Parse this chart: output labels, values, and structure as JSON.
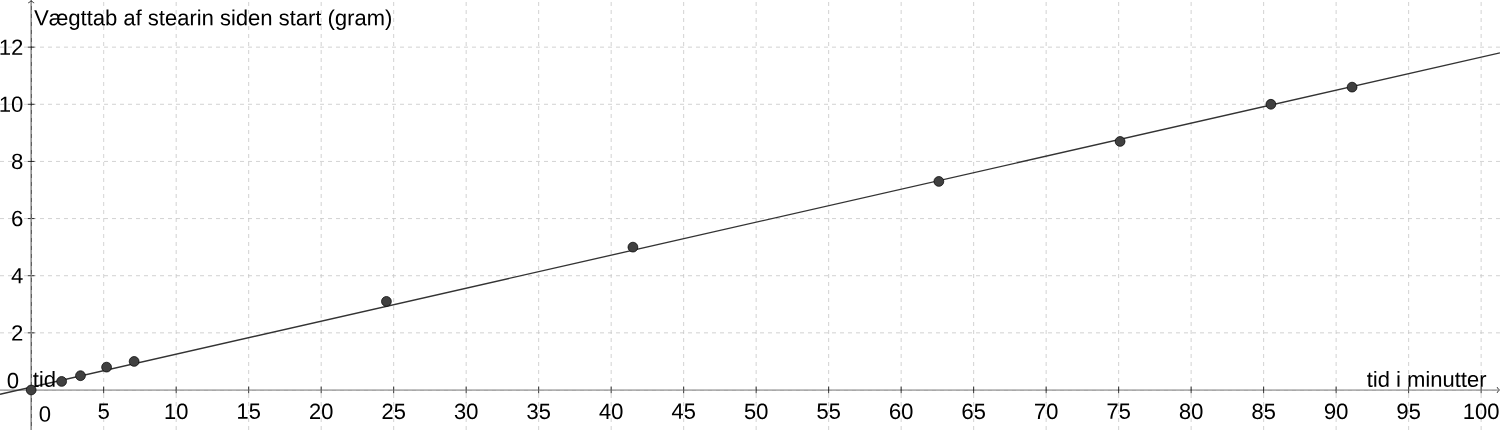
{
  "chart_data": {
    "type": "scatter",
    "xlabel": "tid i minutter",
    "ylabel": "Vægttab af stearin siden start (gram)",
    "xlim": [
      -2.15,
      101.3
    ],
    "ylim": [
      -1.4,
      13.65
    ],
    "xticks": [
      0,
      5,
      10,
      15,
      20,
      25,
      30,
      35,
      40,
      45,
      50,
      55,
      60,
      65,
      70,
      75,
      80,
      85,
      90,
      95,
      100
    ],
    "yticks": [
      0,
      2,
      4,
      6,
      8,
      10,
      12
    ],
    "grid": true,
    "series": [
      {
        "type": "line",
        "color": "#333333",
        "marker": "none",
        "line_style": "solid",
        "x": [
          -2.15,
          101.3
        ],
        "values": [
          -0.15,
          11.8
        ]
      },
      {
        "color": "#404040",
        "marker": "circle",
        "x": [
          0,
          2.1,
          3.4,
          5.2,
          7.1,
          24.5,
          41.5,
          62.6,
          75.1,
          85.5,
          91.1
        ],
        "values": [
          0,
          0.3,
          0.5,
          0.8,
          1.0,
          3.1,
          5.0,
          7.3,
          8.7,
          10.0,
          10.6
        ]
      }
    ],
    "annotations": [
      {
        "text": "tid",
        "x": 0,
        "y": 0
      }
    ]
  }
}
